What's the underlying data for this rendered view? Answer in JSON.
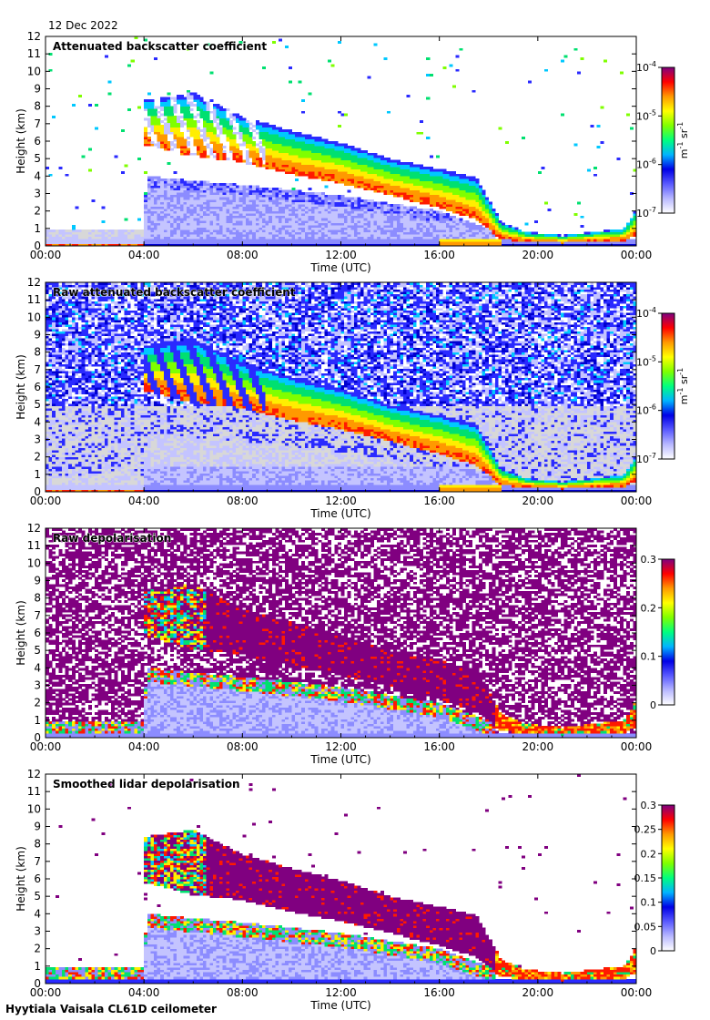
{
  "header": {
    "date": "12 Dec 2022"
  },
  "footer": {
    "instrument": "Hyytiala Vaisala CL61D ceilometer"
  },
  "colors": {
    "background": "#ffffff",
    "noise_gray": "#d8d8d8",
    "purple": "#800080",
    "colormap": [
      "#ffffff",
      "#b8b8ff",
      "#5a5aff",
      "#0000e6",
      "#00b4ff",
      "#00ff7f",
      "#7fff00",
      "#ffff00",
      "#ff9900",
      "#ff0000",
      "#800080"
    ]
  },
  "chart_data": [
    {
      "type": "heatmap",
      "title": "Attenuated backscatter coefficient",
      "xlabel": "Time (UTC)",
      "ylabel": "Height (km)",
      "x_ticks": [
        "00:00",
        "04:00",
        "08:00",
        "12:00",
        "16:00",
        "20:00",
        "00:00"
      ],
      "y_ticks": [
        "0",
        "1",
        "2",
        "3",
        "4",
        "5",
        "6",
        "7",
        "8",
        "9",
        "10",
        "11",
        "12"
      ],
      "xlim_hours": [
        0,
        24
      ],
      "ylim_km": [
        0,
        12
      ],
      "colorbar": {
        "scale": "log",
        "ticks": [
          "10-7",
          "10-6",
          "10-5",
          "10-4"
        ],
        "label": "m-1 sr-1",
        "range": [
          1e-07,
          0.0001
        ]
      },
      "style": "clean",
      "features": {
        "cloud_top_km": [
          [
            4.0,
            8.4
          ],
          [
            6.0,
            8.8
          ],
          [
            8.0,
            7.4
          ],
          [
            10.0,
            6.6
          ],
          [
            12.0,
            5.9
          ],
          [
            14.0,
            5.0
          ],
          [
            16.0,
            4.4
          ],
          [
            17.5,
            3.9
          ],
          [
            18.5,
            1.4
          ],
          [
            19.5,
            0.8
          ],
          [
            21.0,
            0.6
          ],
          [
            23.5,
            1.0
          ],
          [
            24.0,
            2.1
          ]
        ],
        "cloud_base_km": [
          [
            4.0,
            5.8
          ],
          [
            6.0,
            5.1
          ],
          [
            8.0,
            4.8
          ],
          [
            10.0,
            4.1
          ],
          [
            12.0,
            3.6
          ],
          [
            14.0,
            2.9
          ],
          [
            16.0,
            2.2
          ],
          [
            17.5,
            1.5
          ],
          [
            18.5,
            0.4
          ],
          [
            19.5,
            0.25
          ],
          [
            21.0,
            0.2
          ],
          [
            23.5,
            0.3
          ],
          [
            24.0,
            0.6
          ]
        ],
        "aerosol_top_km": [
          [
            0,
            1.0
          ],
          [
            4.0,
            1.0
          ],
          [
            4.1,
            4.0
          ],
          [
            8.0,
            3.5
          ],
          [
            12.0,
            2.9
          ],
          [
            16.0,
            2.0
          ],
          [
            18.0,
            1.0
          ]
        ]
      }
    },
    {
      "type": "heatmap",
      "title": "Raw attenuated backscatter coefficient",
      "xlabel": "Time (UTC)",
      "ylabel": "Height (km)",
      "x_ticks": [
        "00:00",
        "04:00",
        "08:00",
        "12:00",
        "16:00",
        "20:00",
        "00:00"
      ],
      "y_ticks": [
        "0",
        "1",
        "2",
        "3",
        "4",
        "5",
        "6",
        "7",
        "8",
        "9",
        "10",
        "11",
        "12"
      ],
      "xlim_hours": [
        0,
        24
      ],
      "ylim_km": [
        0,
        12
      ],
      "colorbar": {
        "scale": "log",
        "ticks": [
          "10-7",
          "10-6",
          "10-5",
          "10-4"
        ],
        "label": "m-1 sr-1",
        "range": [
          1e-07,
          0.0001
        ]
      },
      "style": "noisy"
    },
    {
      "type": "heatmap",
      "title": "Raw depolarisation",
      "xlabel": "Time (UTC)",
      "ylabel": "Height (km)",
      "x_ticks": [
        "00:00",
        "04:00",
        "08:00",
        "12:00",
        "16:00",
        "20:00",
        "00:00"
      ],
      "y_ticks": [
        "0",
        "1",
        "2",
        "3",
        "4",
        "5",
        "6",
        "7",
        "8",
        "9",
        "10",
        "11",
        "12"
      ],
      "xlim_hours": [
        0,
        24
      ],
      "ylim_km": [
        0,
        12
      ],
      "colorbar": {
        "scale": "linear",
        "ticks": [
          "0",
          "0.1",
          "0.2",
          "0.3"
        ],
        "label": "",
        "range": [
          0,
          0.3
        ]
      },
      "style": "depol_noisy"
    },
    {
      "type": "heatmap",
      "title": "Smoothed lidar depolarisation",
      "xlabel": "Time (UTC)",
      "ylabel": "Height (km)",
      "x_ticks": [
        "00:00",
        "04:00",
        "08:00",
        "12:00",
        "16:00",
        "20:00",
        "00:00"
      ],
      "y_ticks": [
        "0",
        "1",
        "2",
        "3",
        "4",
        "5",
        "6",
        "7",
        "8",
        "9",
        "10",
        "11",
        "12"
      ],
      "xlim_hours": [
        0,
        24
      ],
      "ylim_km": [
        0,
        12
      ],
      "colorbar": {
        "scale": "linear",
        "ticks": [
          "0",
          "0.05",
          "0.1",
          "0.15",
          "0.2",
          "0.25",
          "0.3"
        ],
        "label": "",
        "range": [
          0,
          0.3
        ]
      },
      "style": "depol_smooth"
    }
  ]
}
